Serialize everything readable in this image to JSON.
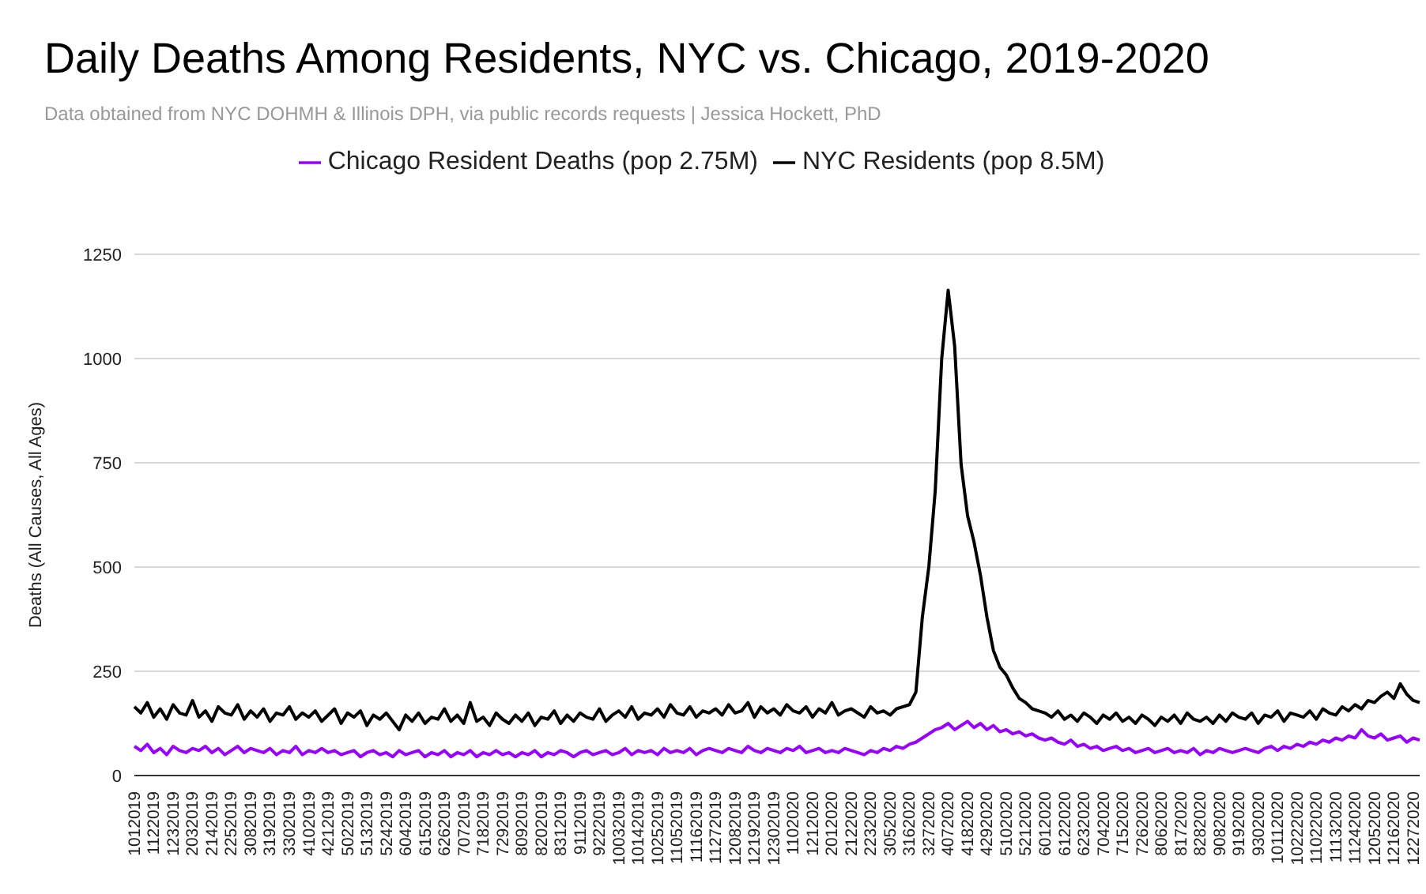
{
  "chart_data": {
    "type": "line",
    "title": "Daily Deaths Among Residents, NYC vs. Chicago, 2019-2020",
    "subtitle": "Data obtained from NYC DOHMH & Illinois DPH, via public records requests | Jessica Hockett, PhD",
    "ylabel": "Deaths (All Causes, All Ages)",
    "categories": [
      "1012019",
      null,
      null,
      "1122019",
      null,
      null,
      "1232019",
      null,
      null,
      "2032019",
      null,
      null,
      "2142019",
      null,
      null,
      "2252019",
      null,
      null,
      "3082019",
      null,
      null,
      "3192019",
      null,
      null,
      "3302019",
      null,
      null,
      "4102019",
      null,
      null,
      "4212019",
      null,
      null,
      "5022019",
      null,
      null,
      "5132019",
      null,
      null,
      "5242019",
      null,
      null,
      "6042019",
      null,
      null,
      "6152019",
      null,
      null,
      "6262019",
      null,
      null,
      "7072019",
      null,
      null,
      "7182019",
      null,
      null,
      "7292019",
      null,
      null,
      "8092019",
      null,
      null,
      "8202019",
      null,
      null,
      "8312019",
      null,
      null,
      "9112019",
      null,
      null,
      "9222019",
      null,
      null,
      "10032019",
      null,
      null,
      "10142019",
      null,
      null,
      "10252019",
      null,
      null,
      "11052019",
      null,
      null,
      "11162019",
      null,
      null,
      "11272019",
      null,
      null,
      "12082019",
      null,
      null,
      "12192019",
      null,
      null,
      "12302019",
      null,
      null,
      "1102020",
      null,
      null,
      "1212020",
      null,
      null,
      "2012020",
      null,
      null,
      "2122020",
      null,
      null,
      "2232020",
      null,
      null,
      "3052020",
      null,
      null,
      "3162020",
      null,
      null,
      "3272020",
      null,
      null,
      "4072020",
      null,
      null,
      "4182020",
      null,
      null,
      "4292020",
      null,
      null,
      "5102020",
      null,
      null,
      "5212020",
      null,
      null,
      "6012020",
      null,
      null,
      "6122020",
      null,
      null,
      "6232020",
      null,
      null,
      "7042020",
      null,
      null,
      "7152020",
      null,
      null,
      "7262020",
      null,
      null,
      "8062020",
      null,
      null,
      "8172020",
      null,
      null,
      "8282020",
      null,
      null,
      "9082020",
      null,
      null,
      "9192020",
      null,
      null,
      "9302020",
      null,
      null,
      "10112020",
      null,
      null,
      "10222020",
      null,
      null,
      "11022020",
      null,
      null,
      "11132020",
      null,
      null,
      "11242020",
      null,
      null,
      "12052020",
      null,
      null,
      "12162020",
      null,
      null,
      "12272020",
      null
    ],
    "series": [
      {
        "name": "NYC Residents (pop 8.5M)",
        "color": "#000000",
        "values": [
          165,
          150,
          175,
          140,
          160,
          135,
          170,
          150,
          145,
          180,
          140,
          155,
          130,
          165,
          150,
          145,
          170,
          135,
          155,
          140,
          160,
          130,
          150,
          145,
          165,
          135,
          150,
          140,
          155,
          130,
          145,
          160,
          125,
          150,
          140,
          155,
          120,
          145,
          135,
          150,
          130,
          110,
          145,
          130,
          150,
          125,
          140,
          135,
          160,
          130,
          145,
          125,
          175,
          130,
          140,
          120,
          150,
          135,
          125,
          145,
          130,
          150,
          120,
          140,
          135,
          155,
          125,
          145,
          130,
          150,
          140,
          135,
          160,
          130,
          145,
          155,
          140,
          165,
          135,
          150,
          145,
          160,
          140,
          170,
          150,
          145,
          165,
          140,
          155,
          150,
          160,
          145,
          170,
          150,
          155,
          175,
          140,
          165,
          150,
          160,
          145,
          170,
          155,
          150,
          165,
          140,
          160,
          150,
          175,
          145,
          155,
          160,
          150,
          140,
          165,
          150,
          155,
          145,
          160,
          165,
          170,
          200,
          380,
          500,
          684,
          1000,
          1164,
          1030,
          746,
          623,
          560,
          480,
          380,
          300,
          260,
          241,
          210,
          185,
          175,
          160,
          155,
          150,
          140,
          155,
          135,
          145,
          130,
          150,
          140,
          125,
          145,
          135,
          150,
          130,
          140,
          125,
          145,
          135,
          120,
          140,
          130,
          145,
          125,
          150,
          135,
          130,
          140,
          125,
          145,
          130,
          150,
          140,
          135,
          150,
          125,
          145,
          140,
          155,
          130,
          150,
          145,
          140,
          155,
          135,
          160,
          150,
          145,
          165,
          155,
          170,
          160,
          180,
          175,
          190,
          200,
          185,
          220,
          195,
          180,
          175
        ]
      },
      {
        "name": "Chicago Resident Deaths (pop 2.75M)",
        "color": "#9900ff",
        "values": [
          70,
          60,
          75,
          55,
          65,
          50,
          70,
          60,
          55,
          65,
          60,
          70,
          55,
          65,
          50,
          60,
          70,
          55,
          65,
          60,
          55,
          65,
          50,
          60,
          55,
          70,
          50,
          60,
          55,
          65,
          55,
          60,
          50,
          55,
          60,
          45,
          55,
          60,
          50,
          55,
          45,
          60,
          50,
          55,
          60,
          45,
          55,
          50,
          60,
          45,
          55,
          50,
          60,
          45,
          55,
          50,
          60,
          50,
          55,
          45,
          55,
          50,
          60,
          45,
          55,
          50,
          60,
          55,
          45,
          55,
          60,
          50,
          55,
          60,
          50,
          55,
          65,
          50,
          60,
          55,
          60,
          50,
          65,
          55,
          60,
          55,
          65,
          50,
          60,
          65,
          60,
          55,
          65,
          60,
          55,
          70,
          60,
          55,
          65,
          60,
          55,
          65,
          60,
          70,
          55,
          60,
          65,
          55,
          60,
          55,
          65,
          60,
          55,
          50,
          60,
          55,
          65,
          60,
          70,
          65,
          75,
          80,
          90,
          100,
          110,
          115,
          125,
          110,
          120,
          130,
          115,
          125,
          110,
          120,
          105,
          110,
          100,
          105,
          95,
          100,
          90,
          85,
          90,
          80,
          75,
          85,
          70,
          75,
          65,
          70,
          60,
          65,
          70,
          60,
          65,
          55,
          60,
          65,
          55,
          60,
          65,
          55,
          60,
          55,
          65,
          50,
          60,
          55,
          65,
          60,
          55,
          60,
          65,
          60,
          55,
          65,
          70,
          60,
          70,
          65,
          75,
          70,
          80,
          75,
          85,
          80,
          90,
          85,
          95,
          90,
          110,
          95,
          90,
          100,
          85,
          90,
          95,
          80,
          90,
          85
        ]
      }
    ],
    "ylim": [
      0,
      1250
    ],
    "yticks": [
      0,
      250,
      500,
      750,
      1000,
      1250
    ],
    "grid": "y",
    "legend": "top",
    "marker": "none",
    "line_style": "solid"
  }
}
